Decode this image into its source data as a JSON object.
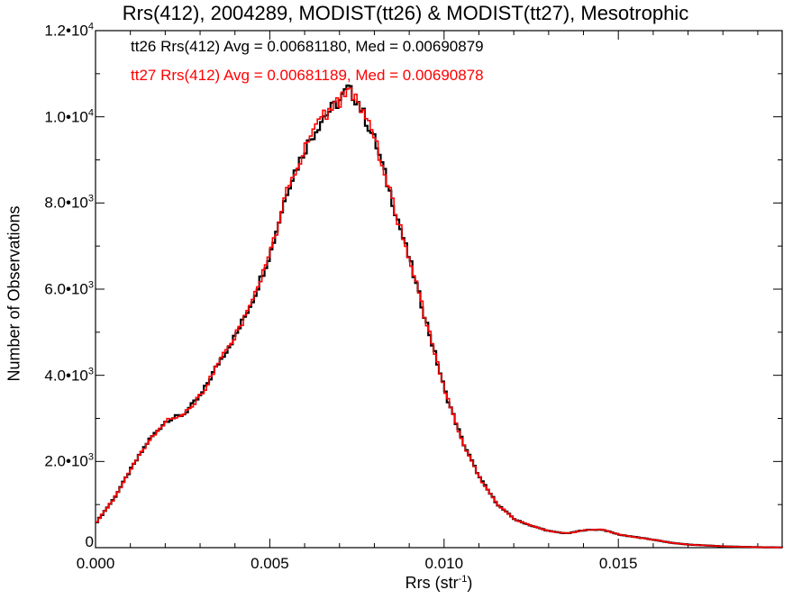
{
  "chart_data": {
    "type": "line",
    "title": "Rrs(412), 2004289, MODIST(tt26) & MODIST(tt27), Mesotrophic",
    "xlabel": "Rrs (str",
    "xlabel_sup": "-1",
    "xlabel_suffix": ")",
    "ylabel": "Number of Observations",
    "xlim": [
      0.0,
      0.0197
    ],
    "ylim": [
      0,
      12000
    ],
    "y_scale": "linear",
    "grid": false,
    "y_ticks": [
      {
        "value": 0,
        "label": "0",
        "sup": ""
      },
      {
        "value": 2000,
        "label": "2.0•10",
        "sup": "3"
      },
      {
        "value": 4000,
        "label": "4.0•10",
        "sup": "3"
      },
      {
        "value": 6000,
        "label": "6.0•10",
        "sup": "3"
      },
      {
        "value": 8000,
        "label": "8.0•10",
        "sup": "3"
      },
      {
        "value": 10000,
        "label": "1.0•10",
        "sup": "4"
      },
      {
        "value": 12000,
        "label": "1.2•10",
        "sup": "4"
      }
    ],
    "x_ticks": [
      {
        "value": 0.0,
        "label": "0.000"
      },
      {
        "value": 0.005,
        "label": "0.005"
      },
      {
        "value": 0.01,
        "label": "0.010"
      },
      {
        "value": 0.015,
        "label": "0.015"
      }
    ],
    "annotations": [
      {
        "text": "tt26 Rrs(412) Avg = 0.00681180, Med = 0.00690879",
        "color": "#000000"
      },
      {
        "text": "tt27 Rrs(412) Avg = 0.00681189, Med = 0.00690878",
        "color": "#ff0000"
      }
    ],
    "x": [
      0.0,
      0.0005,
      0.001,
      0.0015,
      0.002,
      0.0025,
      0.003,
      0.0035,
      0.004,
      0.0045,
      0.005,
      0.0055,
      0.006,
      0.0065,
      0.007,
      0.0072,
      0.0075,
      0.008,
      0.0085,
      0.009,
      0.0095,
      0.01,
      0.0105,
      0.011,
      0.0115,
      0.012,
      0.0125,
      0.013,
      0.0135,
      0.014,
      0.0145,
      0.015,
      0.0155,
      0.016,
      0.0165,
      0.017,
      0.0175,
      0.018,
      0.0185,
      0.019,
      0.0197
    ],
    "series": [
      {
        "name": "tt26",
        "color": "#000000",
        "values": [
          600,
          1150,
          1850,
          2500,
          2950,
          3100,
          3550,
          4300,
          4950,
          5800,
          6900,
          8400,
          9300,
          10000,
          10400,
          10650,
          10350,
          9400,
          8000,
          6600,
          5100,
          3600,
          2450,
          1600,
          1000,
          650,
          500,
          380,
          330,
          410,
          420,
          300,
          240,
          180,
          110,
          70,
          50,
          30,
          20,
          10,
          5
        ]
      },
      {
        "name": "tt27",
        "color": "#ff0000",
        "values": [
          600,
          1150,
          1850,
          2500,
          2950,
          3100,
          3550,
          4300,
          4950,
          5800,
          6900,
          8400,
          9300,
          10000,
          10400,
          10650,
          10350,
          9400,
          8000,
          6600,
          5100,
          3600,
          2450,
          1600,
          1000,
          650,
          500,
          380,
          330,
          410,
          420,
          300,
          240,
          180,
          110,
          70,
          50,
          30,
          20,
          10,
          5
        ]
      }
    ]
  }
}
